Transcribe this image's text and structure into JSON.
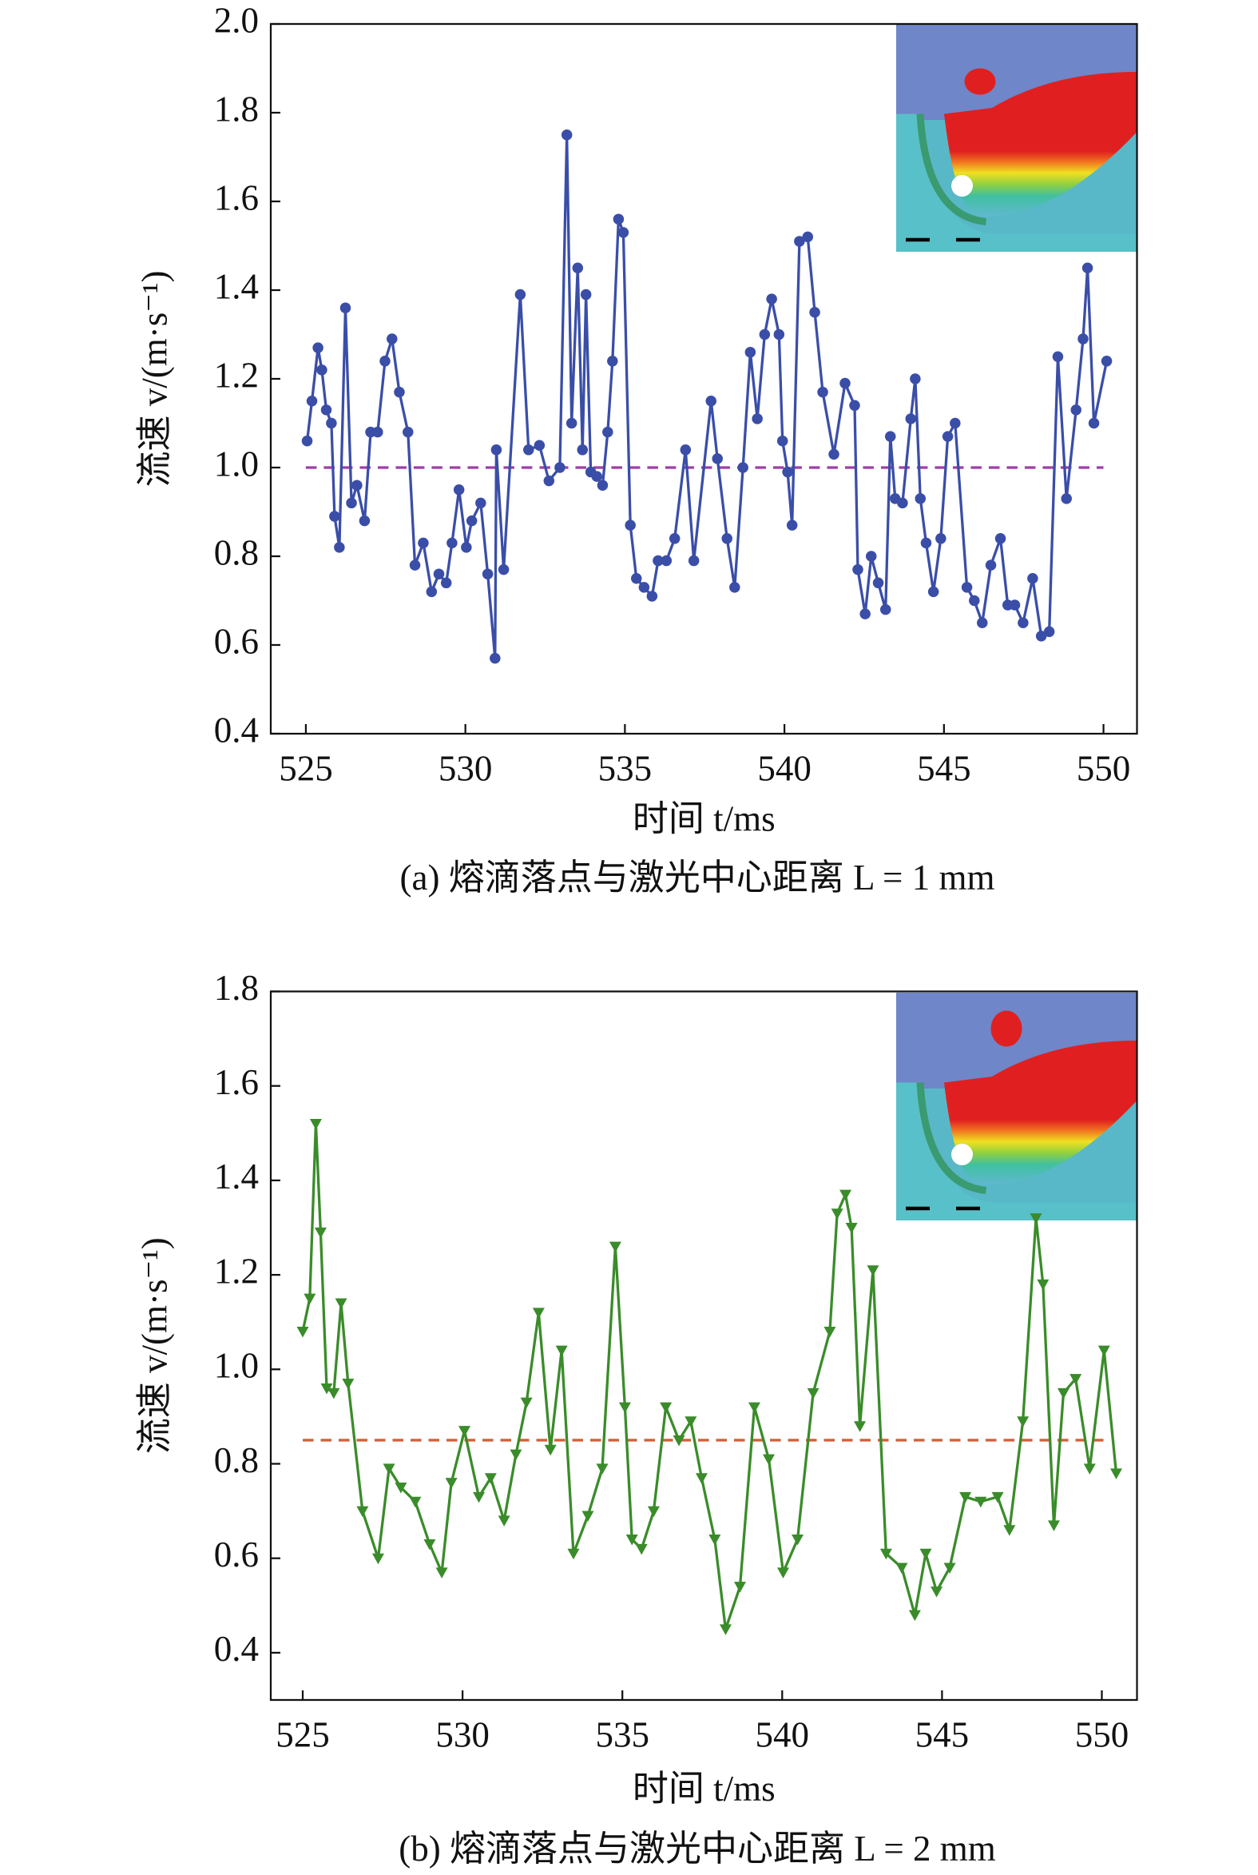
{
  "chart_data": [
    {
      "type": "line",
      "caption": "(a) 熔滴落点与激光中心距离 L = 1 mm",
      "x_label": "时间 t/ms",
      "y_label": "流速 v/(m·s⁻¹)",
      "xlim": [
        523.9,
        551.05
      ],
      "xticks": [
        525,
        530,
        535,
        540,
        545,
        550
      ],
      "ylim": [
        0.4,
        2.0
      ],
      "yticks": [
        0.4,
        0.6,
        0.8,
        {
          "value": 1.0,
          "label": "1.0"
        },
        1.2,
        1.4,
        1.6,
        1.8,
        {
          "value": 2.0,
          "label": "2.0"
        }
      ],
      "reference_line": {
        "value": 1.0,
        "color": "#a03ca8",
        "style": "dashed"
      },
      "x": [
        525.04,
        525.19,
        525.38,
        525.5,
        525.64,
        525.8,
        525.9,
        526.05,
        526.24,
        526.43,
        526.6,
        526.84,
        527.03,
        527.25,
        527.48,
        527.7,
        527.93,
        528.2,
        528.42,
        528.68,
        528.94,
        529.17,
        529.4,
        529.58,
        529.8,
        530.03,
        530.2,
        530.48,
        530.7,
        530.93,
        530.97,
        531.2,
        531.72,
        531.98,
        532.32,
        532.62,
        532.96,
        533.18,
        533.33,
        533.52,
        533.67,
        533.78,
        533.93,
        534.12,
        534.3,
        534.46,
        534.61,
        534.8,
        534.95,
        535.17,
        535.36,
        535.6,
        535.85,
        536.04,
        536.3,
        536.56,
        536.9,
        537.16,
        537.7,
        537.9,
        538.2,
        538.44,
        538.7,
        538.93,
        539.15,
        539.38,
        539.6,
        539.83,
        539.94,
        540.1,
        540.24,
        540.47,
        540.73,
        540.95,
        541.2,
        541.55,
        541.9,
        542.2,
        542.3,
        542.53,
        542.72,
        542.94,
        543.17,
        543.32,
        543.47,
        543.7,
        543.96,
        544.1,
        544.26,
        544.44,
        544.67,
        544.9,
        545.12,
        545.35,
        545.72,
        545.95,
        546.2,
        546.47,
        546.77,
        547.0,
        547.22,
        547.48,
        547.78,
        548.05,
        548.3,
        548.57,
        548.84,
        549.14,
        549.36,
        549.5,
        549.7,
        550.1
      ],
      "series": [
        {
          "color": "#3a4ea8",
          "marker": "circle",
          "values": [
            1.06,
            1.15,
            1.27,
            1.22,
            1.13,
            1.1,
            0.89,
            0.82,
            1.36,
            0.92,
            0.96,
            0.88,
            1.08,
            1.08,
            1.24,
            1.29,
            1.17,
            1.08,
            0.78,
            0.83,
            0.72,
            0.76,
            0.74,
            0.83,
            0.95,
            0.82,
            0.88,
            0.92,
            0.76,
            0.57,
            1.04,
            0.77,
            1.39,
            1.04,
            1.05,
            0.97,
            1.0,
            1.75,
            1.1,
            1.45,
            1.04,
            1.39,
            0.99,
            0.98,
            0.96,
            1.08,
            1.24,
            1.56,
            1.53,
            0.87,
            0.75,
            0.73,
            0.71,
            0.79,
            0.79,
            0.84,
            1.04,
            0.79,
            1.15,
            1.02,
            0.84,
            0.73,
            1.0,
            1.26,
            1.11,
            1.3,
            1.38,
            1.3,
            1.06,
            0.99,
            0.87,
            1.51,
            1.52,
            1.35,
            1.17,
            1.03,
            1.19,
            1.14,
            0.77,
            0.67,
            0.8,
            0.74,
            0.68,
            1.07,
            0.93,
            0.92,
            1.11,
            1.2,
            0.93,
            0.83,
            0.72,
            0.84,
            1.07,
            1.1,
            0.73,
            0.7,
            0.65,
            0.78,
            0.84,
            0.69,
            0.69,
            0.65,
            0.75,
            0.62,
            0.63,
            1.25,
            0.93,
            1.13,
            1.29,
            1.45,
            1.1,
            1.24
          ]
        }
      ]
    },
    {
      "type": "line",
      "caption": "(b) 熔滴落点与激光中心距离 L = 2 mm",
      "x_label": "时间 t/ms",
      "y_label": "流速 v/(m·s⁻¹)",
      "xlim": [
        524.0,
        551.1
      ],
      "xticks": [
        525,
        530,
        535,
        540,
        545,
        550
      ],
      "ylim": [
        0.3,
        1.8
      ],
      "yticks": [
        0.4,
        0.6,
        0.8,
        {
          "value": 1.0,
          "label": "1.0"
        },
        1.2,
        1.4,
        1.6,
        1.8
      ],
      "reference_line": {
        "value": 0.85,
        "color": "#d0603a",
        "style": "dashed"
      },
      "x": [
        525.0,
        525.22,
        525.41,
        525.56,
        525.75,
        525.97,
        526.2,
        526.42,
        526.87,
        527.36,
        527.7,
        528.07,
        528.52,
        528.97,
        529.35,
        529.65,
        530.06,
        530.51,
        530.88,
        531.3,
        531.67,
        532.0,
        532.38,
        532.75,
        533.1,
        533.47,
        533.92,
        534.37,
        534.78,
        535.08,
        535.3,
        535.6,
        535.98,
        536.36,
        536.77,
        537.14,
        537.48,
        537.89,
        538.23,
        538.68,
        539.13,
        539.58,
        540.03,
        540.48,
        540.97,
        541.49,
        541.72,
        541.98,
        542.17,
        542.43,
        542.84,
        543.25,
        543.74,
        544.15,
        544.49,
        544.83,
        545.24,
        545.73,
        546.21,
        546.74,
        547.11,
        547.53,
        547.94,
        548.16,
        548.5,
        548.8,
        549.18,
        549.62,
        550.07,
        550.45
      ],
      "series": [
        {
          "color": "#3a8c2a",
          "marker": "triangle-down",
          "values": [
            1.08,
            1.15,
            1.52,
            1.29,
            0.96,
            0.95,
            1.14,
            0.97,
            0.7,
            0.6,
            0.79,
            0.75,
            0.72,
            0.63,
            0.57,
            0.76,
            0.87,
            0.73,
            0.77,
            0.68,
            0.82,
            0.93,
            1.12,
            0.83,
            1.04,
            0.61,
            0.69,
            0.79,
            1.26,
            0.92,
            0.64,
            0.62,
            0.7,
            0.92,
            0.85,
            0.89,
            0.77,
            0.64,
            0.45,
            0.54,
            0.92,
            0.81,
            0.57,
            0.64,
            0.95,
            1.08,
            1.33,
            1.37,
            1.3,
            0.88,
            1.21,
            0.61,
            0.58,
            0.48,
            0.61,
            0.53,
            0.58,
            0.73,
            0.72,
            0.73,
            0.66,
            0.89,
            1.32,
            1.18,
            0.67,
            0.95,
            0.98,
            0.79,
            1.04,
            0.78
          ]
        }
      ]
    }
  ]
}
